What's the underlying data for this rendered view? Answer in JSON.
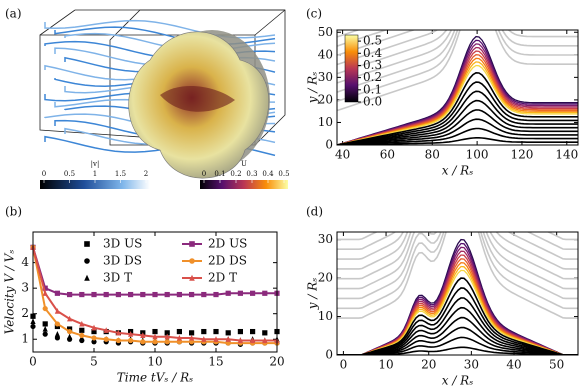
{
  "chart_data": [
    {
      "type": "render",
      "label": "(a)",
      "colorbars": [
        {
          "label": "|v|",
          "ticks": [
            0,
            0.5,
            1,
            1.5,
            2
          ],
          "lim": [
            0,
            2
          ]
        },
        {
          "label": "U",
          "ticks": [
            0,
            0.1,
            0.2,
            0.3,
            0.4,
            0.5
          ],
          "lim": [
            0,
            0.5
          ]
        }
      ]
    },
    {
      "type": "line",
      "label": "(b)",
      "xlabel": "Time tVₛ / Rₛ",
      "ylabel": "Velocity V / Vₛ",
      "x": [
        0,
        1,
        2,
        3,
        4,
        5,
        6,
        7,
        8,
        9,
        10,
        11,
        12,
        13,
        14,
        15,
        16,
        17,
        18,
        19,
        20
      ],
      "xlim": [
        0,
        20
      ],
      "xticks": [
        0,
        5,
        10,
        15,
        20
      ],
      "ylim": [
        0.5,
        5.2
      ],
      "yticks": [
        1,
        2,
        3,
        4
      ],
      "legend": "upper right",
      "series": [
        {
          "name": "3D US",
          "color": "#000000",
          "marker": "square",
          "mode": "markers",
          "values": [
            1.9,
            1.6,
            1.5,
            1.4,
            1.35,
            1.3,
            1.3,
            1.25,
            1.3,
            1.25,
            1.3,
            1.25,
            1.3,
            1.25,
            1.3,
            1.3,
            1.25,
            1.3,
            1.3,
            1.25,
            1.3
          ]
        },
        {
          "name": "3D DS",
          "color": "#000000",
          "marker": "circle",
          "mode": "markers",
          "values": [
            1.5,
            1.2,
            1.05,
            1.0,
            0.95,
            0.9,
            0.9,
            0.85,
            0.9,
            0.85,
            0.85,
            0.85,
            0.9,
            0.85,
            0.85,
            0.85,
            0.85,
            0.8,
            0.85,
            0.85,
            0.85
          ]
        },
        {
          "name": "3D T",
          "color": "#000000",
          "marker": "triangle",
          "mode": "markers",
          "values": [
            1.7,
            1.4,
            1.2,
            1.1,
            1.05,
            1.0,
            1.0,
            0.95,
            1.0,
            0.95,
            0.95,
            1.0,
            0.95,
            1.0,
            0.95,
            0.95,
            1.0,
            0.95,
            1.0,
            0.95,
            1.0
          ]
        },
        {
          "name": "2D US",
          "color": "#8b2a7d",
          "marker": "square",
          "mode": "lines+markers",
          "values": [
            4.6,
            3.0,
            2.8,
            2.75,
            2.75,
            2.75,
            2.75,
            2.75,
            2.75,
            2.75,
            2.75,
            2.75,
            2.75,
            2.75,
            2.75,
            2.75,
            2.8,
            2.8,
            2.8,
            2.8,
            2.8
          ]
        },
        {
          "name": "2D DS",
          "color": "#f0902a",
          "marker": "circle",
          "mode": "lines+markers",
          "values": [
            4.6,
            2.2,
            1.6,
            1.3,
            1.15,
            1.05,
            1.0,
            0.95,
            0.95,
            0.9,
            0.9,
            0.9,
            0.9,
            0.9,
            0.9,
            0.9,
            0.85,
            0.85,
            0.85,
            0.85,
            0.85
          ]
        },
        {
          "name": "2D T",
          "color": "#d9504a",
          "marker": "triangle",
          "mode": "lines+markers",
          "values": [
            4.6,
            2.8,
            2.1,
            1.8,
            1.6,
            1.45,
            1.35,
            1.25,
            1.2,
            1.15,
            1.1,
            1.1,
            1.05,
            1.05,
            1.0,
            1.0,
            1.0,
            0.95,
            0.95,
            0.95,
            0.95
          ]
        }
      ]
    },
    {
      "type": "contour",
      "label": "(c)",
      "xlabel": "x / Rₛ",
      "ylabel": "y / Rₛ",
      "xlim": [
        37.5,
        145
      ],
      "xticks": [
        40,
        60,
        80,
        100,
        120,
        140
      ],
      "ylim": [
        0,
        51
      ],
      "yticks": [
        0,
        10,
        20,
        30,
        40,
        50
      ],
      "colorbar": {
        "lim": [
          0,
          0.55
        ],
        "ticks": [
          {
            "value": 0,
            "label": "0.0"
          },
          0.1,
          0.2,
          0.3,
          0.4,
          0.5
        ]
      }
    },
    {
      "type": "contour",
      "label": "(d)",
      "xlabel": "x / Rₛ",
      "ylabel": "y / Rₛ",
      "xlim": [
        -1.5,
        55
      ],
      "xticks": [
        0,
        10,
        20,
        30,
        40,
        50
      ],
      "ylim": [
        0,
        32
      ],
      "yticks": [
        0,
        10,
        20,
        30
      ]
    }
  ]
}
